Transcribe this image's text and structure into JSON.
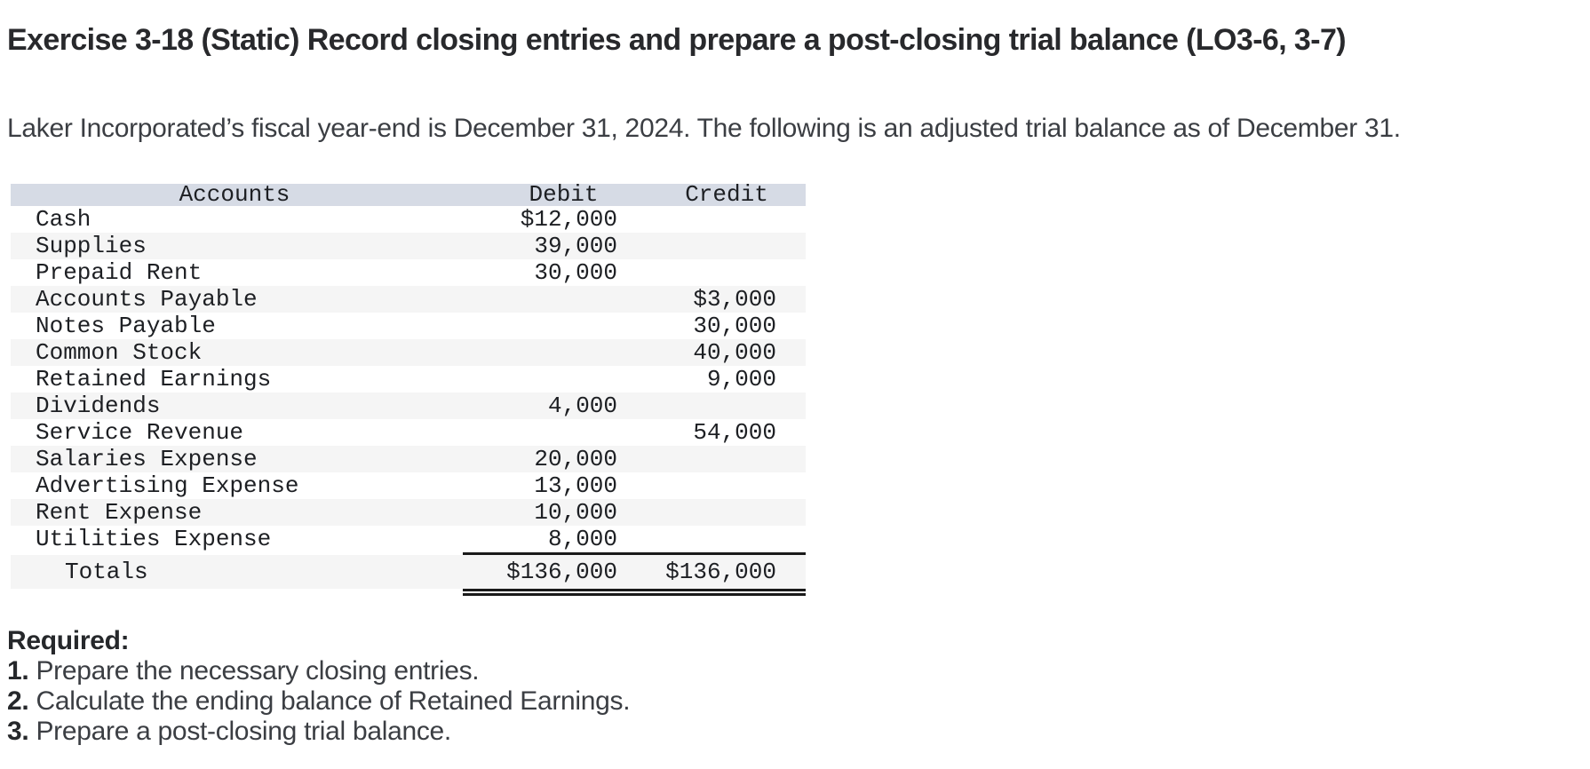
{
  "title": "Exercise 3-18 (Static) Record closing entries and prepare a post-closing trial balance (LO3-6, 3-7)",
  "intro": "Laker Incorporated’s fiscal year-end is December 31, 2024. The following is an adjusted trial balance as of December 31.",
  "table": {
    "headers": [
      "Accounts",
      "Debit",
      "Credit"
    ],
    "rows": [
      {
        "account": "Cash",
        "debit": "$12,000",
        "credit": ""
      },
      {
        "account": "Supplies",
        "debit": "39,000",
        "credit": ""
      },
      {
        "account": "Prepaid Rent",
        "debit": "30,000",
        "credit": ""
      },
      {
        "account": "Accounts Payable",
        "debit": "",
        "credit": "$3,000"
      },
      {
        "account": "Notes Payable",
        "debit": "",
        "credit": "30,000"
      },
      {
        "account": "Common Stock",
        "debit": "",
        "credit": "40,000"
      },
      {
        "account": "Retained Earnings",
        "debit": "",
        "credit": "9,000"
      },
      {
        "account": "Dividends",
        "debit": "4,000",
        "credit": ""
      },
      {
        "account": "Service Revenue",
        "debit": "",
        "credit": "54,000"
      },
      {
        "account": "Salaries Expense",
        "debit": "20,000",
        "credit": ""
      },
      {
        "account": "Advertising Expense",
        "debit": "13,000",
        "credit": ""
      },
      {
        "account": "Rent Expense",
        "debit": "10,000",
        "credit": ""
      },
      {
        "account": "Utilities Expense",
        "debit": "8,000",
        "credit": ""
      }
    ],
    "totals": {
      "label": "Totals",
      "debit": "$136,000",
      "credit": "$136,000"
    }
  },
  "required": {
    "heading": "Required:",
    "items": [
      {
        "number": "1.",
        "text": "Prepare the necessary closing entries."
      },
      {
        "number": "2.",
        "text": "Calculate the ending balance of Retained Earnings."
      },
      {
        "number": "3.",
        "text": "Prepare a post-closing trial balance."
      }
    ]
  },
  "colors": {
    "header_bg": "#d6dbe5",
    "alt_row_bg": "#f5f5f5",
    "rule": "#1a1a1a"
  }
}
